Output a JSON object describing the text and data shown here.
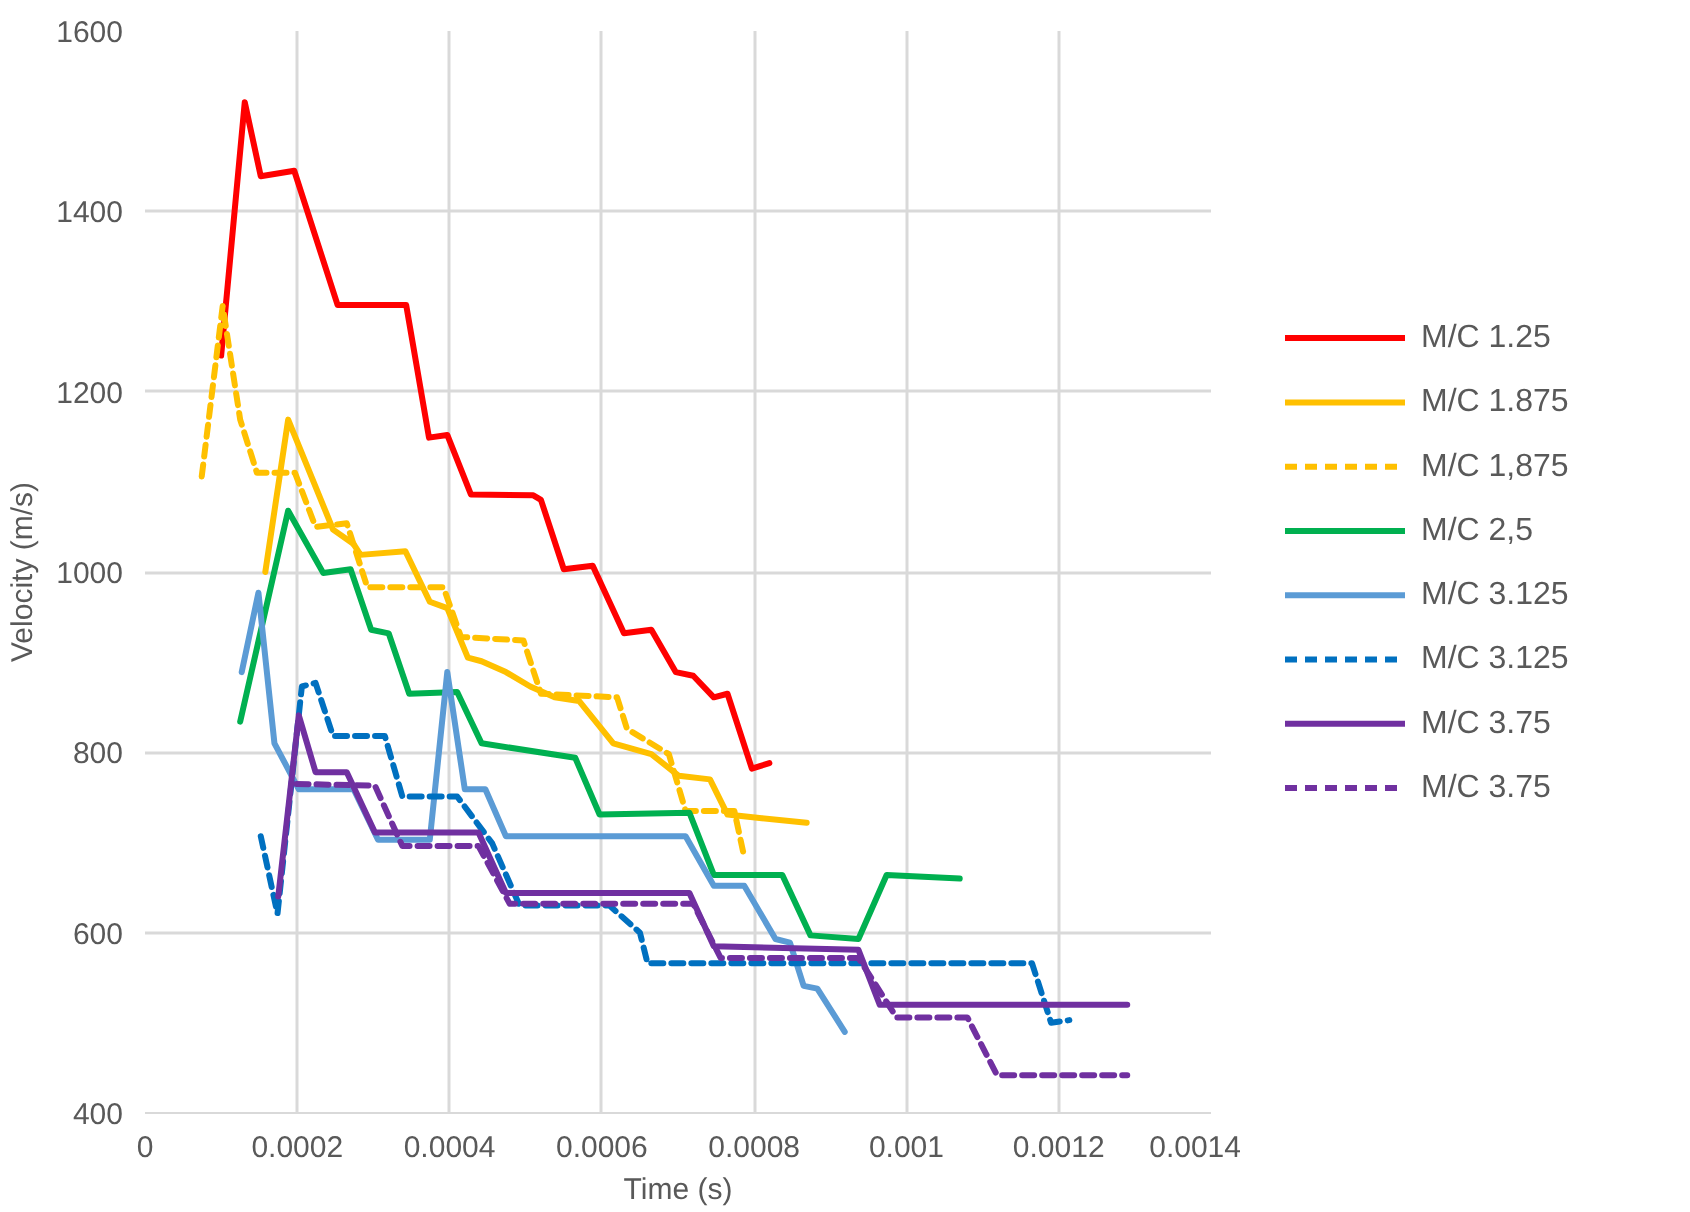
{
  "chart_data": {
    "type": "line",
    "xlabel": "Time (s)",
    "ylabel": "Velocity (m/s)",
    "xlim": [
      0,
      0.0014
    ],
    "ylim": [
      400,
      1600
    ],
    "xticks": [
      0,
      0.0002,
      0.0004,
      0.0006,
      0.0008,
      0.001,
      0.0012,
      0.0014
    ],
    "yticks": [
      400,
      600,
      800,
      1000,
      1200,
      1400,
      1600
    ],
    "grid": true,
    "legend": "right",
    "marker": "none",
    "series": [
      {
        "name": "M/C 1.25",
        "color": "#ff0000",
        "line_style": "solid",
        "x": [
          0.0001,
          0.000131,
          0.000152,
          0.000196,
          0.000253,
          0.000343,
          0.000373,
          0.000397,
          0.000428,
          0.00051,
          0.00052,
          0.00055,
          0.000588,
          0.000629,
          0.000665,
          0.000697,
          0.00072,
          0.000747,
          0.000765,
          0.000797,
          0.00082
        ],
        "values": [
          1240,
          1521,
          1439,
          1445,
          1296,
          1296,
          1149,
          1152,
          1086,
          1085,
          1080,
          1003,
          1007,
          932,
          936,
          889,
          885,
          861,
          865,
          782,
          788
        ]
      },
      {
        "name": "M/C 1.875",
        "color": "#ffc000",
        "line_style": "solid",
        "x": [
          0.000158,
          0.000188,
          0.000247,
          0.000274,
          0.000283,
          0.000342,
          0.000374,
          0.000397,
          0.000424,
          0.000442,
          0.000474,
          0.000506,
          0.000538,
          0.00057,
          0.000615,
          0.000665,
          0.000701,
          0.000742,
          0.000765,
          0.00081,
          0.000869
        ],
        "values": [
          1000,
          1169,
          1047,
          1031,
          1019,
          1023,
          967,
          960,
          905,
          901,
          889,
          873,
          861,
          857,
          810,
          798,
          774,
          770,
          731,
          727,
          722
        ]
      },
      {
        "name": "M/C 1,875",
        "color": "#ffc000",
        "line_style": "dashed",
        "x": [
          7.45e-05,
          0.000102,
          0.000125,
          0.000147,
          0.000197,
          0.000224,
          0.000265,
          0.000292,
          0.000392,
          0.000415,
          0.000497,
          0.00052,
          0.00062,
          0.000633,
          0.000688,
          0.00071,
          0.000774,
          0.000787
        ],
        "values": [
          1106,
          1295,
          1169,
          1110,
          1110,
          1050,
          1054,
          983,
          983,
          928,
          924,
          865,
          861,
          826,
          798,
          735,
          735,
          684
        ]
      },
      {
        "name": "M/C 2,5",
        "color": "#00b050",
        "line_style": "solid",
        "x": [
          0.000125,
          0.000188,
          0.000234,
          0.00027,
          0.000297,
          0.00032,
          0.000347,
          0.00041,
          0.000442,
          0.000565,
          0.000597,
          0.000715,
          0.000747,
          0.000837,
          0.000874,
          0.000937,
          0.000974,
          0.00107
        ],
        "values": [
          834,
          1068,
          999,
          1003,
          936,
          932,
          865,
          867,
          810,
          794,
          731,
          733,
          664,
          664,
          597,
          593,
          664,
          660
        ]
      },
      {
        "name": "M/C 3.125",
        "color": "#5b9bd5",
        "line_style": "solid",
        "x": [
          0.000127,
          0.000149,
          0.00017,
          0.000202,
          0.000274,
          0.000306,
          0.000374,
          0.000397,
          0.00042,
          0.000447,
          0.000474,
          0.00071,
          0.000747,
          0.000787,
          0.000828,
          0.000847,
          0.000865,
          0.000883,
          0.000919
        ],
        "values": [
          889,
          977,
          810,
          759,
          759,
          703,
          703,
          889,
          759,
          759,
          707,
          707,
          652,
          652,
          593,
          589,
          541,
          538,
          490
        ]
      },
      {
        "name": "M/C 3.125",
        "color": "#0070c0",
        "line_style": "dashed",
        "x": [
          0.000152,
          0.000174,
          0.000206,
          0.000224,
          0.000247,
          0.000315,
          0.000338,
          0.00041,
          0.000456,
          0.000492,
          0.00061,
          0.00065,
          0.00066,
          0.001165,
          0.00119,
          0.001214
        ],
        "values": [
          707,
          621,
          873,
          877,
          818,
          818,
          751,
          751,
          699,
          630,
          630,
          600,
          566,
          566,
          500,
          503
        ]
      },
      {
        "name": "M/C 3.75",
        "color": "#7030a0",
        "line_style": "solid",
        "x": [
          0.000175,
          0.000202,
          0.000224,
          0.000265,
          0.000302,
          0.000438,
          0.000474,
          0.000715,
          0.000747,
          0.000937,
          0.000965,
          0.00129
        ],
        "values": [
          640,
          841,
          778,
          778,
          711,
          711,
          644,
          644,
          585,
          581,
          520,
          520
        ]
      },
      {
        "name": "M/C 3.75",
        "color": "#7030a0",
        "line_style": "dashed",
        "x": [
          0.000199,
          0.000302,
          0.000338,
          0.000438,
          0.000479,
          0.00072,
          0.000756,
          0.000937,
          0.000987,
          0.00108,
          0.001119,
          0.00129
        ],
        "values": [
          765,
          763,
          696,
          696,
          632,
          632,
          572,
          572,
          506,
          506,
          442,
          442
        ]
      }
    ]
  }
}
